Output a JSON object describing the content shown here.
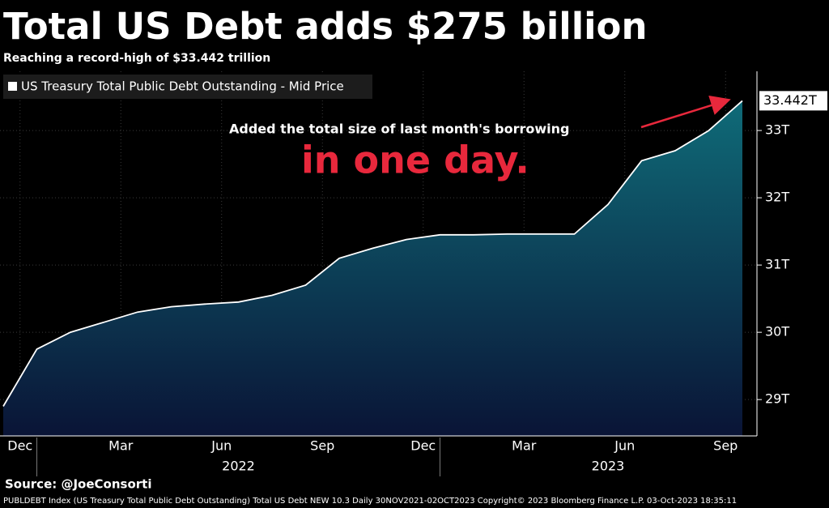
{
  "chart_data": {
    "type": "area",
    "title": "Total US Debt adds $275 billion",
    "subtitle": "Reaching a record-high of $33.442 trillion",
    "annotations": [
      "Added the total size of last month's borrowing",
      "in one day."
    ],
    "source": "Source: @JoeConsorti",
    "footer": "PUBLDEBT Index (US Treasury Total Public Debt Outstanding) Total US Debt NEW 10.3  Daily 30NOV2021-02OCT2023 Copyright© 2023 Bloomberg Finance L.P. 03-Oct-2023 18:35:11",
    "x": [
      "2021-12",
      "2022-01",
      "2022-02",
      "2022-03",
      "2022-04",
      "2022-05",
      "2022-06",
      "2022-07",
      "2022-08",
      "2022-09",
      "2022-10",
      "2022-11",
      "2022-12",
      "2023-01",
      "2023-02",
      "2023-03",
      "2023-04",
      "2023-05",
      "2023-06",
      "2023-07",
      "2023-08",
      "2023-09",
      "2023-10"
    ],
    "series": [
      {
        "name": "US Treasury Total Public Debt Outstanding - Mid Price",
        "color": "#ffffff",
        "values": [
          28.9,
          29.75,
          30.0,
          30.15,
          30.3,
          30.38,
          30.42,
          30.45,
          30.55,
          30.7,
          31.1,
          31.25,
          31.38,
          31.45,
          31.45,
          31.46,
          31.46,
          31.46,
          31.9,
          32.55,
          32.7,
          33.0,
          33.442
        ],
        "last_value_label": "33.442T"
      }
    ],
    "xlim": [
      "2021-12",
      "2023-10"
    ],
    "xticks": [
      {
        "value": "2021-12",
        "label": "Dec"
      },
      {
        "value": "2022-03",
        "label": "Mar"
      },
      {
        "value": "2022-06",
        "label": "Jun"
      },
      {
        "value": "2022-09",
        "label": "Sep"
      },
      {
        "value": "2022-12",
        "label": "Dec"
      },
      {
        "value": "2023-03",
        "label": "Mar"
      },
      {
        "value": "2023-06",
        "label": "Jun"
      },
      {
        "value": "2023-09",
        "label": "Sep"
      }
    ],
    "x_year_labels": [
      {
        "value": "2022-07",
        "label": "2022"
      },
      {
        "value": "2023-06",
        "label": "2023"
      }
    ],
    "ylim": [
      28.46,
      33.88
    ],
    "yticks": [
      {
        "value": 29,
        "label": "29T"
      },
      {
        "value": 30,
        "label": "30T"
      },
      {
        "value": 31,
        "label": "31T"
      },
      {
        "value": 32,
        "label": "32T"
      },
      {
        "value": 33,
        "label": "33T"
      }
    ],
    "grid": true
  }
}
